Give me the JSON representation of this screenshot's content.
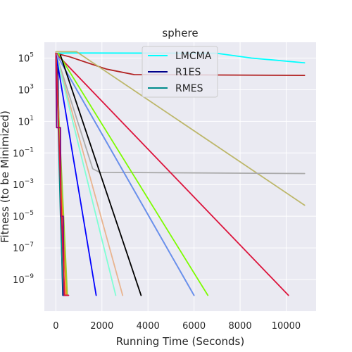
{
  "chart_data": {
    "type": "line",
    "title": "sphere",
    "xlabel": "Running Time (Seconds)",
    "ylabel": "Fitness (to be Minimized)",
    "x_scale": "linear",
    "y_scale": "log",
    "xlim": [
      -500,
      11300
    ],
    "ylim_log10": [
      -11.0,
      6.0
    ],
    "x_ticks": [
      0,
      2000,
      4000,
      6000,
      8000,
      10000
    ],
    "y_ticks_exponents": [
      -9,
      -7,
      -5,
      -3,
      -1,
      1,
      3,
      5
    ],
    "grid": true,
    "legend_position": "top-center",
    "colors": {
      "background": "#eaeaf2",
      "grid": "#ffffff"
    },
    "series": [
      {
        "name": "LMCMA",
        "color": "#00ffff",
        "points": [
          [
            100,
            200000.0
          ],
          [
            700,
            210000.0
          ],
          [
            7000,
            200000.0
          ],
          [
            8500,
            100000.0
          ],
          [
            10800,
            50000.0
          ]
        ]
      },
      {
        "name": "R1ES",
        "color": "#00008b",
        "points": [
          [
            0,
            200000.0
          ],
          [
            80,
            30000.0
          ],
          [
            200,
            0.0001
          ],
          [
            300,
            1e-10
          ],
          [
            380,
            1e-10
          ]
        ]
      },
      {
        "name": "RMES",
        "color": "#008b8b",
        "points": [
          [
            0,
            200000.0
          ],
          [
            80,
            100.0
          ],
          [
            200,
            1e-05
          ],
          [
            320,
            1e-10
          ],
          [
            420,
            1e-10
          ]
        ]
      },
      {
        "color": "#b22222",
        "points": [
          [
            0,
            200000.0
          ],
          [
            600,
            120000.0
          ],
          [
            2200,
            20000.0
          ],
          [
            3400,
            9000.0
          ],
          [
            10800,
            8000.0
          ]
        ]
      },
      {
        "color": "#bdb76b",
        "points": [
          [
            0,
            250000.0
          ],
          [
            900,
            250000.0
          ],
          [
            10800,
            5e-05
          ]
        ]
      },
      {
        "color": "#aaaaaa",
        "points": [
          [
            0,
            200000.0
          ],
          [
            1600,
            0.01
          ],
          [
            1900,
            0.006
          ],
          [
            10800,
            0.005
          ]
        ]
      },
      {
        "color": "#dc143c",
        "points": [
          [
            0,
            200000.0
          ],
          [
            10100,
            1e-10
          ]
        ]
      },
      {
        "color": "#7cfc00",
        "points": [
          [
            100,
            200000.0
          ],
          [
            6600,
            1e-10
          ]
        ]
      },
      {
        "color": "#9932cc",
        "points": [
          [
            0,
            200000.0
          ],
          [
            6000,
            1e-10
          ]
        ]
      },
      {
        "color": "#6495ed",
        "points": [
          [
            0,
            200000.0
          ],
          [
            6000,
            1e-10
          ]
        ]
      },
      {
        "color": "#000000",
        "points": [
          [
            200,
            150000.0
          ],
          [
            3700,
            1e-10
          ]
        ]
      },
      {
        "color": "#e9b48f",
        "points": [
          [
            0,
            200000.0
          ],
          [
            2900,
            1e-10
          ]
        ]
      },
      {
        "color": "#7fffd4",
        "points": [
          [
            0,
            200000.0
          ],
          [
            2600,
            1e-10
          ]
        ]
      },
      {
        "color": "#0000ff",
        "points": [
          [
            0,
            200000.0
          ],
          [
            1750,
            1e-10
          ]
        ]
      },
      {
        "color": "#ff8c00",
        "points": [
          [
            0,
            200000.0
          ],
          [
            450,
            1e-10
          ]
        ]
      },
      {
        "color": "#9acd32",
        "points": [
          [
            0,
            200000.0
          ],
          [
            500,
            1e-10
          ]
        ]
      },
      {
        "color": "#800080",
        "points": [
          [
            0,
            200000.0
          ],
          [
            30,
            4
          ],
          [
            200,
            4
          ],
          [
            220,
            1e-05
          ],
          [
            320,
            1e-05
          ],
          [
            350,
            1e-10
          ],
          [
            550,
            1e-10
          ]
        ]
      },
      {
        "color": "#dc143c",
        "points": [
          [
            0,
            200000.0
          ],
          [
            30,
            20000.0
          ],
          [
            250,
            1e-05
          ],
          [
            380,
            1e-10
          ],
          [
            550,
            1e-10
          ]
        ]
      }
    ]
  }
}
